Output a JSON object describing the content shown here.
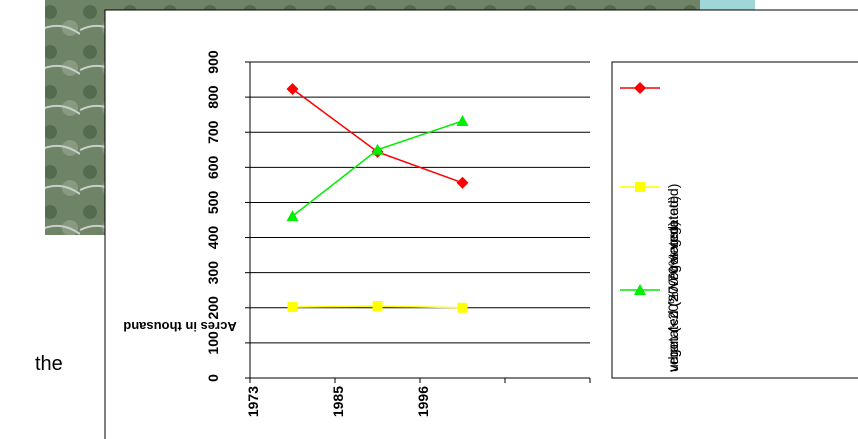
{
  "page_text": "the",
  "chart_data": {
    "type": "line",
    "y_axis_label": "Acres in thousand",
    "categories": [
      "1973",
      "1985",
      "1996",
      null
    ],
    "series": [
      {
        "name": "vegetated (>70% vegetated)",
        "color": "#ff0000",
        "marker": "diamond",
        "values": [
          823,
          644,
          556,
          null
        ]
      },
      {
        "name": "urban (<20% vegetated)",
        "color": "#ffff00",
        "marker": "square",
        "values": [
          202,
          205,
          200,
          null
        ]
      },
      {
        "name": "vegetated (20-70% vegetated)",
        "color": "#00ee00",
        "marker": "triangle",
        "values": [
          461,
          650,
          732,
          null
        ]
      }
    ],
    "ylim": [
      0,
      900
    ],
    "yticks": [
      0,
      100,
      200,
      300,
      400,
      500,
      600,
      700,
      800,
      900
    ],
    "grid": true
  }
}
